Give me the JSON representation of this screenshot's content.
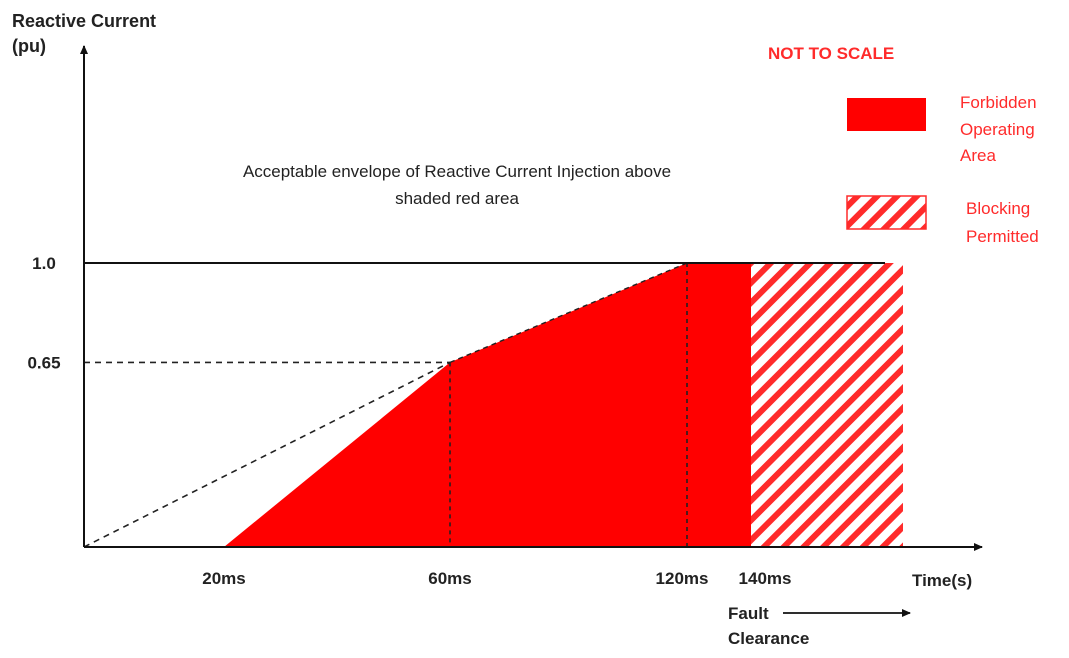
{
  "chart_data": {
    "type": "area",
    "ylabel_line1": "Reactive Current",
    "ylabel_line2": "(pu)",
    "xlabel": "Time(s)",
    "ylim": [
      0,
      1.0
    ],
    "y_ticks": [
      {
        "value": 1.0,
        "label": "1.0"
      },
      {
        "value": 0.65,
        "label": "0.65"
      }
    ],
    "x_ticks": [
      {
        "value": 20,
        "label": "20ms"
      },
      {
        "value": 60,
        "label": "60ms"
      },
      {
        "value": 120,
        "label": "120ms"
      },
      {
        "value": 140,
        "label": "140ms"
      }
    ],
    "forbidden_area": {
      "x": [
        20,
        60,
        120,
        140
      ],
      "y": [
        0,
        0.65,
        1.0,
        1.0
      ]
    },
    "blocking_permitted_area": {
      "x": [
        140,
        164
      ],
      "y": [
        1.0,
        1.0
      ]
    },
    "dashed_guide": {
      "x": [
        0,
        60
      ],
      "y": [
        0,
        0.65
      ]
    },
    "annotation_line1": "Acceptable envelope of Reactive Current Injection above",
    "annotation_line2": "shaded red area",
    "not_to_scale": "NOT TO SCALE",
    "fault_label_line1": "Fault",
    "fault_label_line2": "Clearance",
    "legend": [
      {
        "lines": [
          "Forbidden",
          "Operating",
          "Area"
        ],
        "fill": "solid"
      },
      {
        "lines": [
          "Blocking",
          "Permitted"
        ],
        "fill": "hatched"
      }
    ],
    "colors": {
      "forbidden": "#ff0000",
      "axis": "#111111"
    }
  }
}
